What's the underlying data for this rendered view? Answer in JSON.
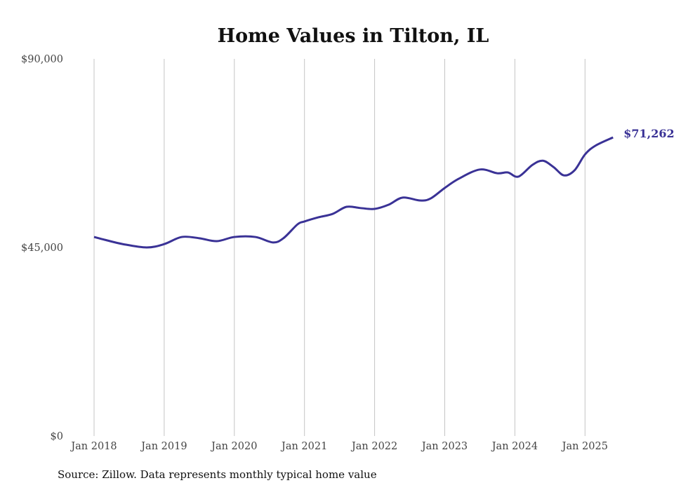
{
  "chart_data": {
    "type": "line",
    "title": "Home Values in Tilton, IL",
    "xlabel": "",
    "ylabel": "",
    "ylim": [
      0,
      90000
    ],
    "y_ticks": [
      0,
      45000,
      90000
    ],
    "y_tick_labels": [
      "$0",
      "$45,000",
      "$90,000"
    ],
    "x_ticks": [
      2018,
      2019,
      2020,
      2021,
      2022,
      2023,
      2024,
      2025
    ],
    "x_tick_labels": [
      "Jan 2018",
      "Jan 2019",
      "Jan 2020",
      "Jan 2021",
      "Jan 2022",
      "Jan 2023",
      "Jan 2024",
      "Jan 2025"
    ],
    "xlim": [
      2018,
      2025.42
    ],
    "grid": "vertical",
    "line_color": "#3a3296",
    "end_label": "$71,262",
    "series": [
      {
        "name": "Typical home value",
        "x": [
          2018.0,
          2018.16,
          2018.41,
          2018.75,
          2019.0,
          2019.25,
          2019.5,
          2019.75,
          2020.0,
          2020.3,
          2020.55,
          2020.7,
          2020.9,
          2021.0,
          2021.2,
          2021.4,
          2021.6,
          2021.8,
          2022.0,
          2022.2,
          2022.4,
          2022.65,
          2022.8,
          2023.0,
          2023.2,
          2023.5,
          2023.75,
          2023.9,
          2024.05,
          2024.25,
          2024.4,
          2024.55,
          2024.7,
          2024.85,
          2025.0,
          2025.15,
          2025.4
        ],
        "y": [
          47500,
          46800,
          45800,
          45000,
          45800,
          47500,
          47200,
          46500,
          47500,
          47500,
          46200,
          47200,
          50500,
          51200,
          52200,
          53000,
          54700,
          54400,
          54200,
          55200,
          56900,
          56200,
          56700,
          59200,
          61400,
          63600,
          62700,
          62900,
          61900,
          64700,
          65700,
          64200,
          62200,
          63400,
          67200,
          69300,
          71262
        ]
      }
    ]
  },
  "source": "Source: Zillow. Data represents monthly typical home value"
}
